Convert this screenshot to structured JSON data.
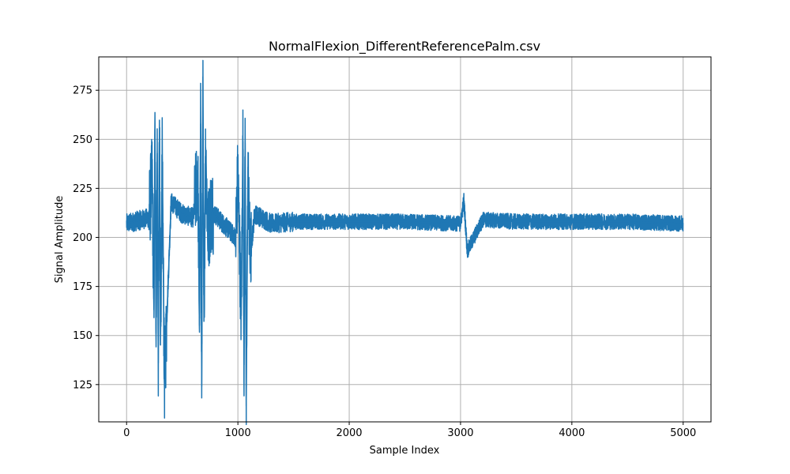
{
  "chart_data": {
    "type": "line",
    "title": "NormalFlexion_DifferentReferencePalm.csv",
    "xlabel": "Sample Index",
    "ylabel": "Signal Amplitude",
    "xlim": [
      -250,
      5250
    ],
    "ylim": [
      106,
      292
    ],
    "xticks": [
      0,
      1000,
      2000,
      3000,
      4000,
      5000
    ],
    "xtick_labels": [
      "0",
      "1000",
      "2000",
      "3000",
      "4000",
      "5000"
    ],
    "yticks": [
      125,
      150,
      175,
      200,
      225,
      250,
      275
    ],
    "ytick_labels": [
      "125",
      "150",
      "175",
      "200",
      "225",
      "250",
      "275"
    ],
    "grid": true,
    "legend": "none",
    "line_color": "#1f77b4",
    "series": [
      {
        "x": [
          0,
          200,
          230,
          245,
          255,
          265,
          275,
          285,
          295,
          305,
          320,
          340,
          400,
          500,
          600,
          640,
          655,
          665,
          675,
          685,
          695,
          710,
          730,
          760,
          850,
          980,
          1000,
          1030,
          1045,
          1055,
          1065,
          1075,
          1090,
          1110,
          1150,
          1300,
          1500,
          2000,
          2500,
          3000,
          3030,
          3060,
          3200,
          3500,
          4000,
          4500,
          5000
        ],
        "values": [
          207,
          210,
          232,
          163,
          255,
          151,
          243,
          136,
          260,
          145,
          240,
          126,
          218,
          212,
          210,
          233,
          155,
          258,
          124,
          282,
          157,
          246,
          202,
          214,
          208,
          200,
          232,
          160,
          249,
          135,
          248,
          114,
          236,
          188,
          212,
          207,
          208,
          208,
          208,
          207,
          219,
          193,
          209,
          208,
          208,
          208,
          207
        ],
        "noise_band": 4,
        "points": 5000
      }
    ]
  }
}
